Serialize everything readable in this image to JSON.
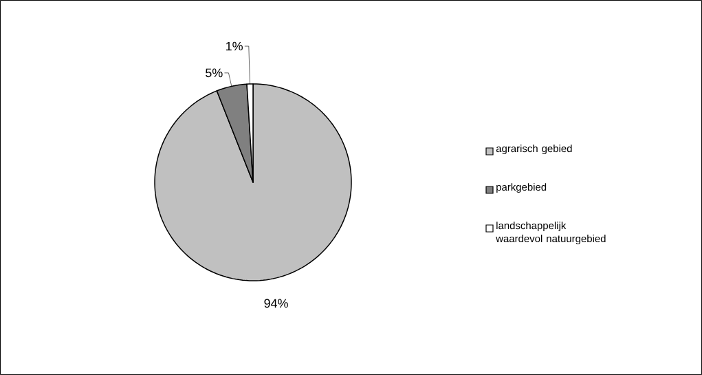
{
  "chart_data": {
    "type": "pie",
    "categories": [
      "agrarisch gebied",
      "parkgebied",
      "landschappelijk waardevol natuurgebied"
    ],
    "values": [
      94,
      5,
      1
    ],
    "colors": [
      "#c0c0c0",
      "#808080",
      "#ffffff"
    ],
    "value_labels": [
      "94%",
      "5%",
      "1%"
    ],
    "legend": "right"
  }
}
